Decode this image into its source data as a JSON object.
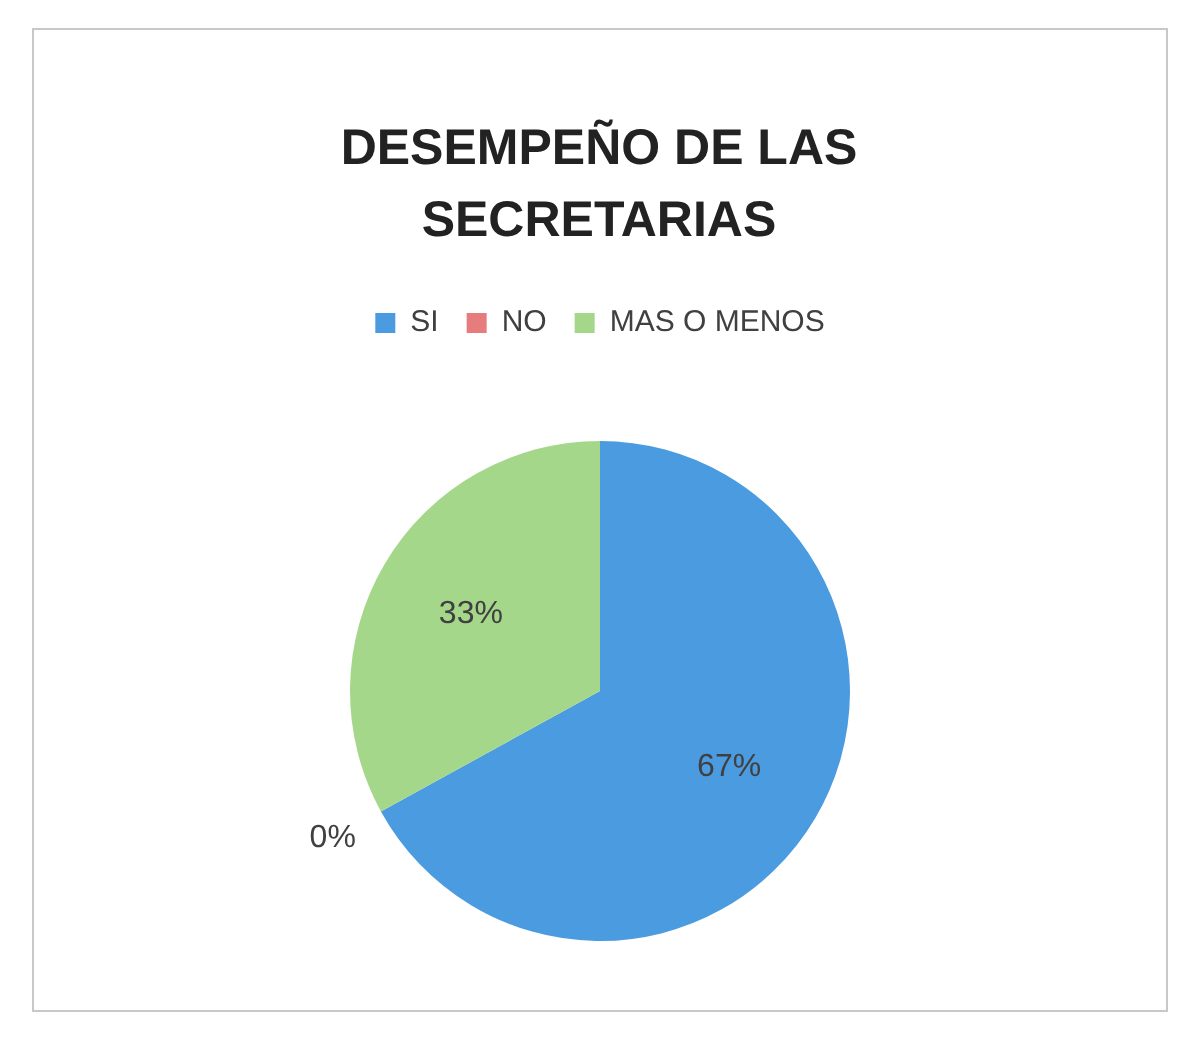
{
  "chart_data": {
    "type": "pie",
    "title": "DESEMPEÑO DE LAS SECRETARIAS",
    "categories": [
      "SI",
      "NO",
      "MAS O MENOS"
    ],
    "values": [
      67,
      0,
      33
    ],
    "colors": [
      "#4a9be0",
      "#e77c7c",
      "#a5d78a"
    ],
    "value_labels": [
      "67%",
      "0%",
      "33%"
    ],
    "legend": "top"
  }
}
